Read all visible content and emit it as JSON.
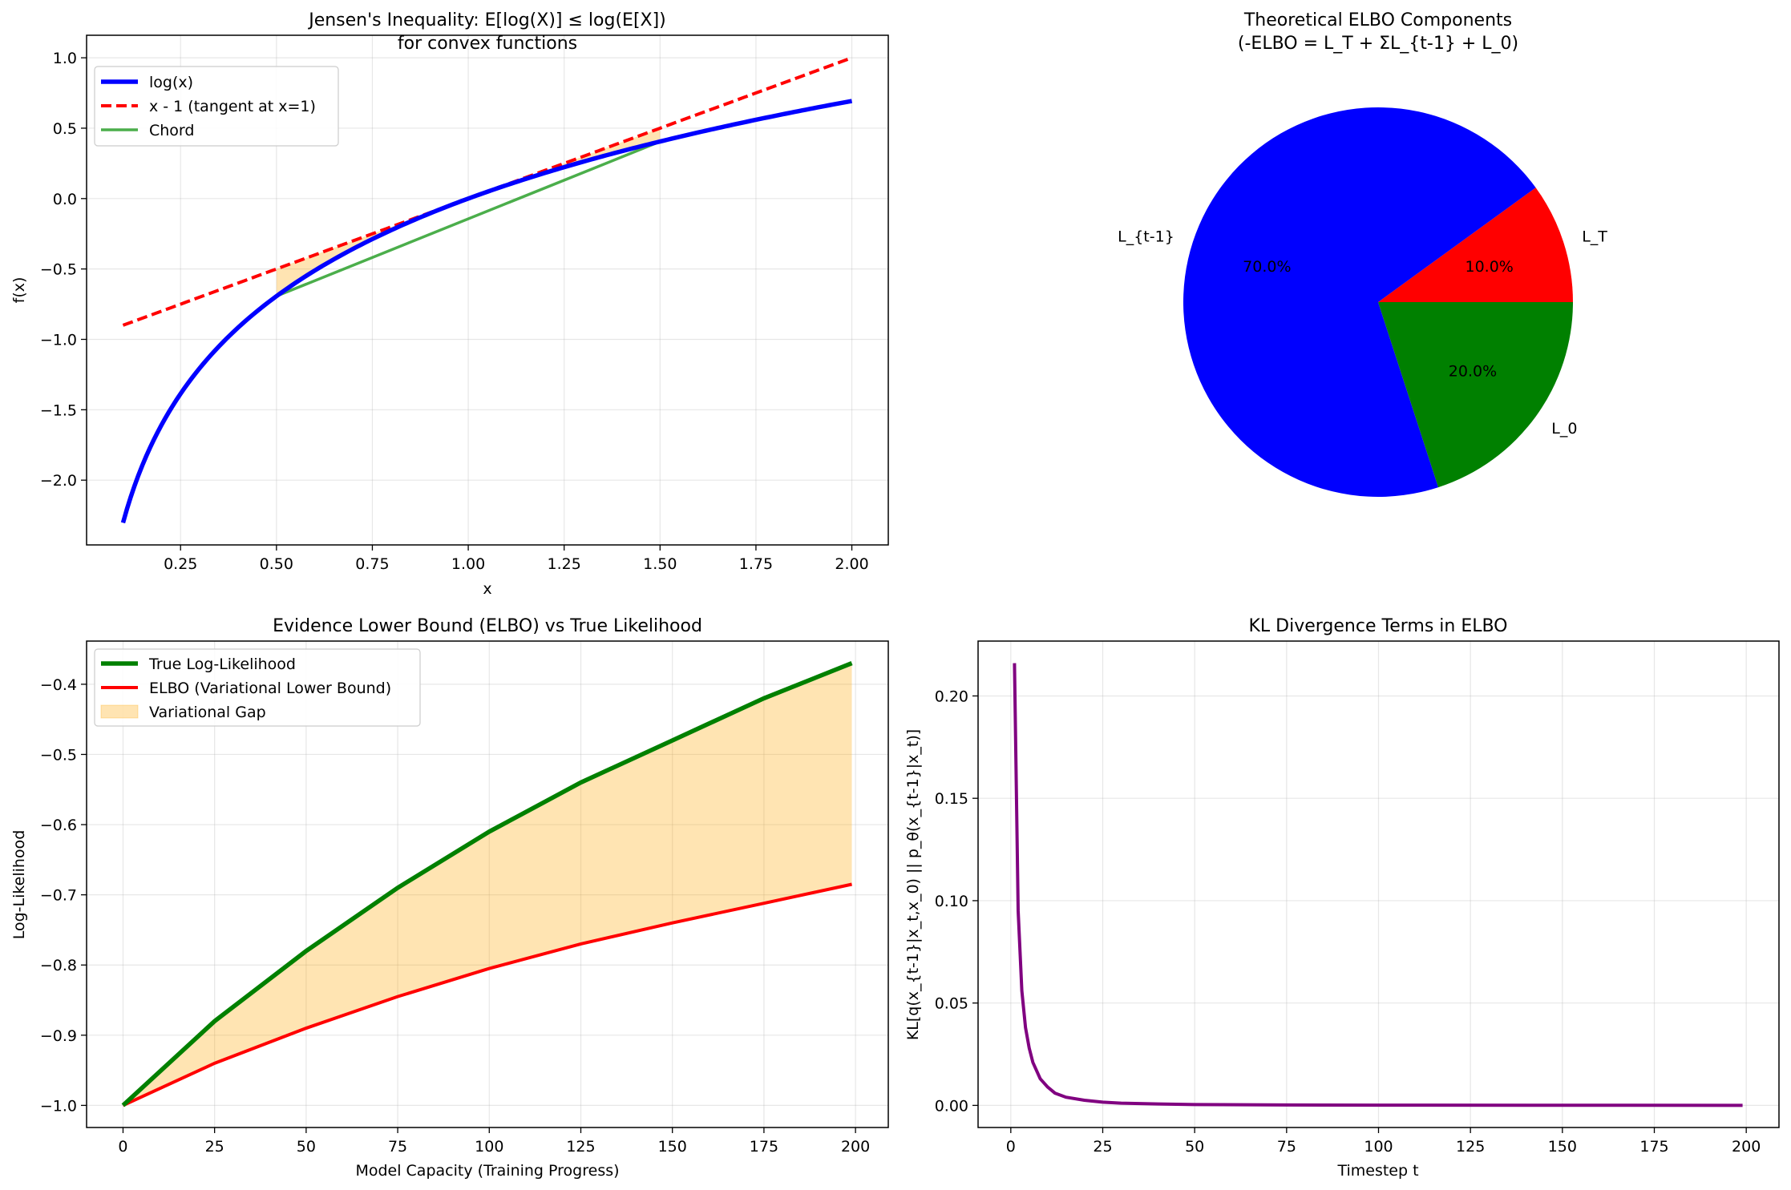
{
  "chart_data": [
    {
      "type": "line",
      "title": "Jensen's Inequality: E[log(X)] ≤ log(E[X])",
      "subtitle": "for convex functions",
      "xlabel": "x",
      "ylabel": "f(x)",
      "xlim": [
        0.005,
        2.095
      ],
      "ylim": [
        -2.46,
        1.16
      ],
      "xticks": [
        0.25,
        0.5,
        0.75,
        1.0,
        1.25,
        1.5,
        1.75,
        2.0
      ],
      "xtick_labels": [
        "0.25",
        "0.50",
        "0.75",
        "1.00",
        "1.25",
        "1.50",
        "1.75",
        "2.00"
      ],
      "yticks": [
        1.0,
        0.5,
        0.0,
        -0.5,
        -1.0,
        -1.5,
        -2.0
      ],
      "ytick_labels": [
        "1.0",
        "0.5",
        "0.0",
        "−0.5",
        "−1.0",
        "−1.5",
        "−2.0"
      ],
      "grid": true,
      "legend_position": "top-left",
      "x_domain": [
        0.1,
        2.0
      ],
      "series": [
        {
          "name": "log(x)",
          "function": "log(x)",
          "color": "#0000ff",
          "style": "solid",
          "width": 3
        },
        {
          "name": "x - 1 (tangent at x=1)",
          "function": "x - 1",
          "color": "#ff0000",
          "style": "dashed",
          "width": 2
        },
        {
          "name": "Chord",
          "x": [
            0.5,
            1.5
          ],
          "y": [
            -0.693,
            0.405
          ],
          "color": "#2ca02c",
          "style": "solid",
          "width": 2
        }
      ],
      "shaded_region": {
        "between": [
          "x - 1 (tangent at x=1)",
          "log(x)"
        ],
        "x_range": [
          0.5,
          1.5
        ],
        "color": "#ffa500"
      }
    },
    {
      "type": "pie",
      "title": "Theoretical ELBO Components",
      "subtitle": "(-ELBO = L_T + ΣL_{t-1} + L_0)",
      "labels": [
        "L_T",
        "L_{t-1}",
        "L_0"
      ],
      "values": [
        10,
        70,
        20
      ],
      "value_labels": [
        "10.0%",
        "70.0%",
        "20.0%"
      ],
      "colors": [
        "#ff0000",
        "#0000ff",
        "#008000"
      ],
      "start_angle": 0
    },
    {
      "type": "area",
      "title": "Evidence Lower Bound (ELBO) vs True Likelihood",
      "xlabel": "Model Capacity (Training Progress)",
      "ylabel": "Log-Likelihood",
      "xlim": [
        -9.95,
        208.95
      ],
      "ylim": [
        -1.0315,
        -0.3385
      ],
      "xticks": [
        0,
        25,
        50,
        75,
        100,
        125,
        150,
        175,
        200
      ],
      "xtick_labels": [
        "0",
        "25",
        "50",
        "75",
        "100",
        "125",
        "150",
        "175",
        "200"
      ],
      "yticks": [
        -0.4,
        -0.5,
        -0.6,
        -0.7,
        -0.8,
        -0.9,
        -1.0
      ],
      "ytick_labels": [
        "−0.4",
        "−0.5",
        "−0.6",
        "−0.7",
        "−0.8",
        "−0.9",
        "−1.0"
      ],
      "grid": true,
      "legend_position": "top-left",
      "x": [
        0,
        25,
        50,
        75,
        100,
        125,
        150,
        175,
        199
      ],
      "series": [
        {
          "name": "True Log-Likelihood",
          "values": [
            -1.0,
            -0.88,
            -0.78,
            -0.69,
            -0.61,
            -0.54,
            -0.48,
            -0.42,
            -0.37
          ],
          "color": "#008000",
          "width": 3
        },
        {
          "name": "ELBO (Variational Lower Bound)",
          "values": [
            -1.0,
            -0.94,
            -0.89,
            -0.845,
            -0.805,
            -0.77,
            -0.74,
            -0.712,
            -0.685
          ],
          "color": "#ff0000",
          "width": 2
        }
      ],
      "fill": {
        "name": "Variational Gap",
        "color": "#ffa500"
      }
    },
    {
      "type": "line",
      "title": "KL Divergence Terms in ELBO",
      "xlabel": "Timestep t",
      "ylabel": "KL[q(x_{t-1}|x_t,x_0) || p_θ(x_{t-1}|x_t)]",
      "xlim": [
        -8.9,
        208.9
      ],
      "ylim": [
        -0.0108,
        0.2268
      ],
      "xticks": [
        0,
        25,
        50,
        75,
        100,
        125,
        150,
        175,
        200
      ],
      "xtick_labels": [
        "0",
        "25",
        "50",
        "75",
        "100",
        "125",
        "150",
        "175",
        "200"
      ],
      "yticks": [
        0.0,
        0.05,
        0.1,
        0.15,
        0.2
      ],
      "ytick_labels": [
        "0.00",
        "0.05",
        "0.10",
        "0.15",
        "0.20"
      ],
      "grid": true,
      "series": [
        {
          "name": "",
          "x": [
            1,
            2,
            3,
            4,
            5,
            6,
            7,
            8,
            10,
            12,
            15,
            20,
            25,
            30,
            40,
            50,
            75,
            100,
            150,
            199
          ],
          "values": [
            0.216,
            0.095,
            0.056,
            0.038,
            0.028,
            0.021,
            0.017,
            0.013,
            0.009,
            0.006,
            0.004,
            0.0025,
            0.0016,
            0.0011,
            0.0007,
            0.0004,
            0.0002,
            0.0001,
            5e-05,
            2e-05
          ],
          "color": "#800080",
          "width": 2
        }
      ]
    }
  ]
}
